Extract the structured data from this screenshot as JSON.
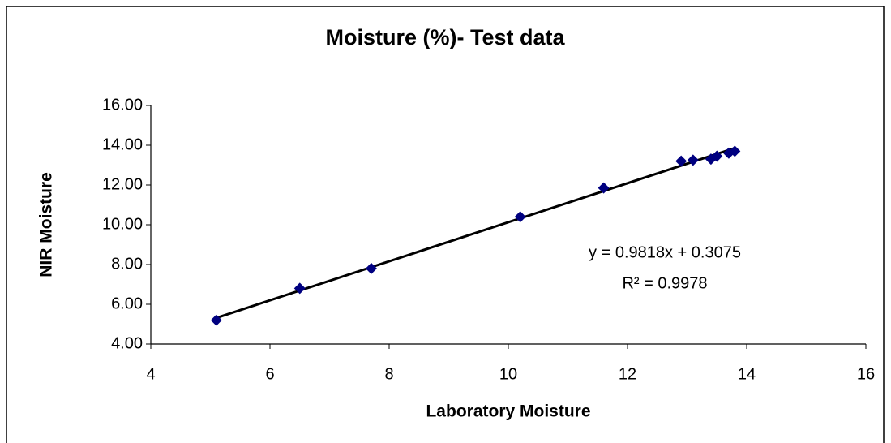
{
  "chart_data": {
    "type": "scatter",
    "title": "Moisture (%)- Test data",
    "x_label": "Laboratory Moisture",
    "y_label": "NIR Moisture",
    "series": [
      {
        "name": "Test data",
        "color": "#000080",
        "x": [
          5.1,
          6.5,
          7.7,
          10.2,
          11.6,
          12.9,
          13.1,
          13.4,
          13.5,
          13.7,
          13.8
        ],
        "values": [
          5.2,
          6.8,
          7.8,
          10.4,
          11.85,
          13.2,
          13.25,
          13.3,
          13.45,
          13.6,
          13.7
        ]
      }
    ],
    "trendline": {
      "slope": 0.9818,
      "intercept": 0.3075,
      "color": "#000000",
      "equation_label": "y = 0.9818x + 0.3075",
      "r2_label": "R² = 0.9978"
    },
    "xlim": [
      4,
      16
    ],
    "xticks": [
      4,
      6,
      8,
      10,
      12,
      14,
      16
    ],
    "ylim": [
      4,
      16
    ],
    "yticks": [
      {
        "value": 4,
        "label": "4.00"
      },
      {
        "value": 6,
        "label": "6.00"
      },
      {
        "value": 8,
        "label": "8.00"
      },
      {
        "value": 10,
        "label": "10.00"
      },
      {
        "value": 12,
        "label": "12.00"
      },
      {
        "value": 14,
        "label": "14.00"
      },
      {
        "value": 16,
        "label": "16.00"
      }
    ],
    "grid": false
  }
}
